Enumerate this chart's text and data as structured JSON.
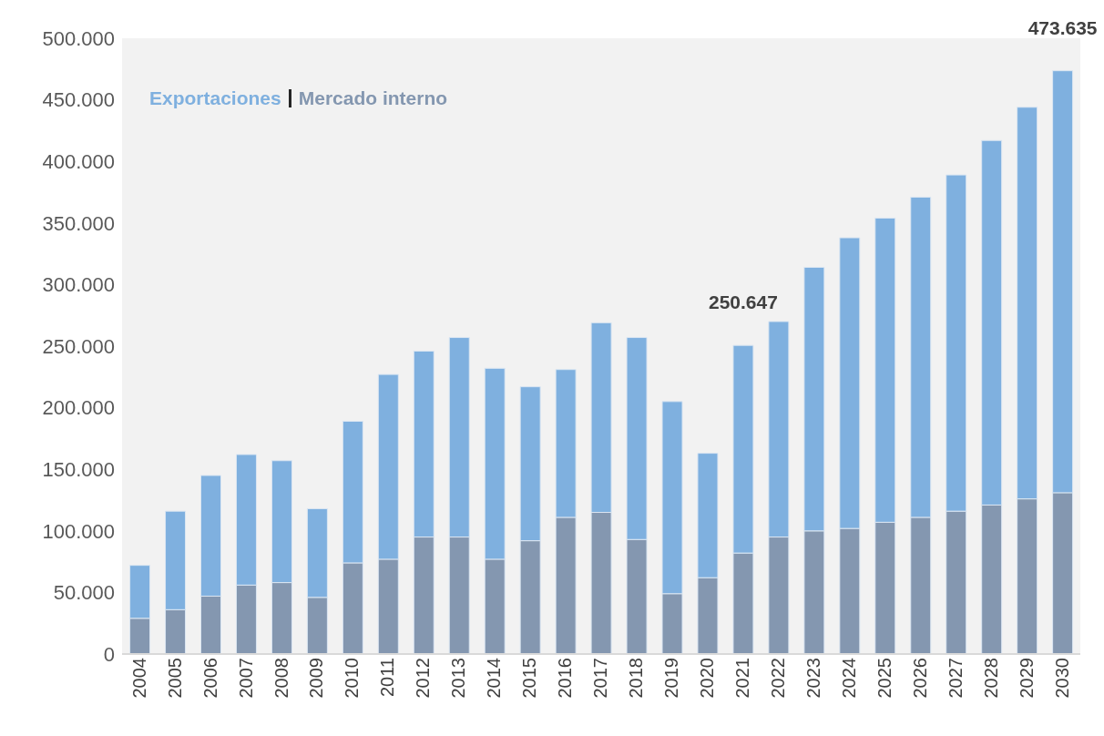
{
  "chart_data": {
    "type": "bar",
    "stacked": true,
    "categories": [
      "2004",
      "2005",
      "2006",
      "2007",
      "2008",
      "2009",
      "2010",
      "2011",
      "2012",
      "2013",
      "2014",
      "2015",
      "2016",
      "2017",
      "2018",
      "2019",
      "2020",
      "2021",
      "2022",
      "2023",
      "2024",
      "2025",
      "2026",
      "2027",
      "2028",
      "2029",
      "2030"
    ],
    "series": [
      {
        "name": "Mercado interno",
        "color": "#8497b0",
        "values": [
          29000,
          36000,
          47000,
          56000,
          58000,
          46000,
          74000,
          77000,
          95000,
          95000,
          77000,
          92000,
          111000,
          115000,
          93000,
          49000,
          62000,
          82000,
          95000,
          100000,
          102000,
          107000,
          111000,
          116000,
          121000,
          126000,
          131000
        ]
      },
      {
        "name": "Exportaciones",
        "color": "#7fb0df",
        "values": [
          43000,
          80000,
          98000,
          106000,
          99000,
          72000,
          115000,
          150000,
          151000,
          162000,
          155000,
          125000,
          120000,
          154000,
          164000,
          156000,
          101000,
          168647,
          175000,
          214000,
          236000,
          247000,
          260000,
          273000,
          296000,
          318000,
          342635
        ]
      }
    ],
    "totals": [
      null,
      null,
      null,
      null,
      null,
      null,
      null,
      null,
      null,
      null,
      null,
      null,
      null,
      null,
      null,
      null,
      null,
      "250.647",
      null,
      null,
      null,
      null,
      null,
      null,
      null,
      null,
      "473.635"
    ],
    "ylim": [
      0,
      500000
    ],
    "yticks": [
      {
        "value": 0,
        "label": "0"
      },
      {
        "value": 50000,
        "label": "50.000"
      },
      {
        "value": 100000,
        "label": "100.000"
      },
      {
        "value": 150000,
        "label": "150.000"
      },
      {
        "value": 200000,
        "label": "200.000"
      },
      {
        "value": 250000,
        "label": "250.000"
      },
      {
        "value": 300000,
        "label": "300.000"
      },
      {
        "value": 350000,
        "label": "350.000"
      },
      {
        "value": 400000,
        "label": "400.000"
      },
      {
        "value": 450000,
        "label": "450.000"
      },
      {
        "value": 500000,
        "label": "500.000"
      }
    ],
    "grid": false,
    "legend": "top left"
  }
}
